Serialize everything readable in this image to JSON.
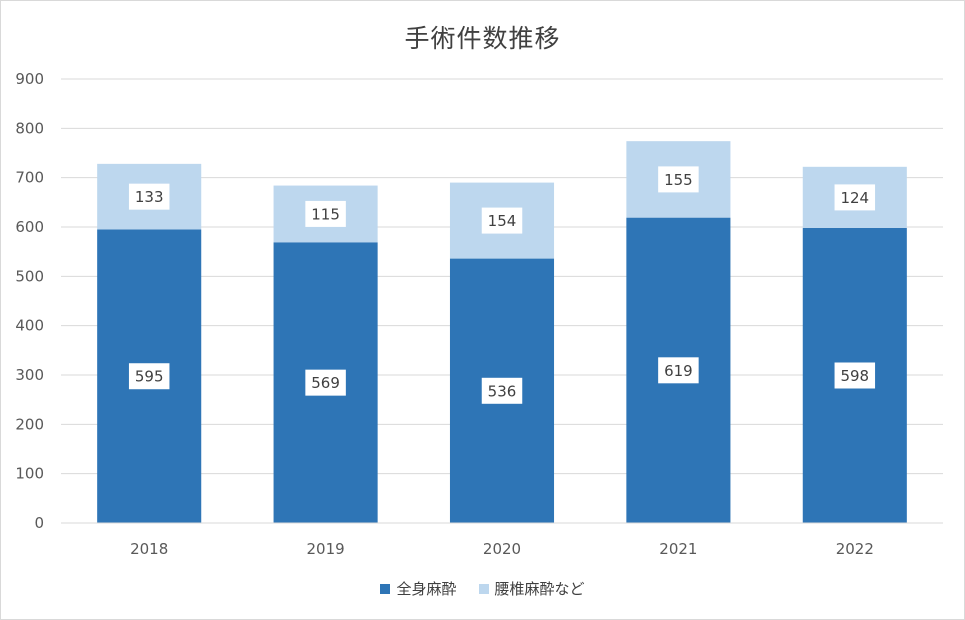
{
  "chart_data": {
    "type": "bar",
    "stacked": true,
    "title": "手術件数推移",
    "categories": [
      "2018",
      "2019",
      "2020",
      "2021",
      "2022"
    ],
    "series": [
      {
        "name": "全身麻酔",
        "values": [
          595,
          569,
          536,
          619,
          598
        ],
        "color": "#2e75b6"
      },
      {
        "name": "腰椎麻酔など",
        "values": [
          133,
          115,
          154,
          155,
          124
        ],
        "color": "#bdd7ee"
      }
    ],
    "ylim": [
      0,
      900
    ],
    "yticks": [
      "0",
      "100",
      "200",
      "300",
      "400",
      "500",
      "600",
      "700",
      "800",
      "900"
    ],
    "grid": true,
    "legend_position": "bottom",
    "data_labels": true
  }
}
